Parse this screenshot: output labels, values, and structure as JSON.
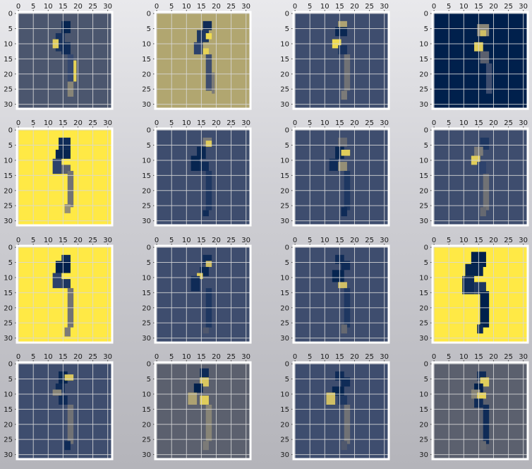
{
  "chart_data": {
    "type": "heatmap",
    "layout": {
      "rows": 4,
      "cols": 4
    },
    "image_shape": [
      32,
      32
    ],
    "axis_ticks": [
      "0",
      "5",
      "10",
      "15",
      "20",
      "25",
      "30"
    ],
    "xlim": [
      -0.5,
      31.5
    ],
    "ylim": [
      31.5,
      -0.5
    ],
    "x_axis_position": "top",
    "grid": true,
    "colormap": "cividis",
    "colormap_stops": [
      "#00204c",
      "#32466f",
      "#575d6d",
      "#7c7b78",
      "#a59c74",
      "#cbba69",
      "#ffe945"
    ],
    "panels": [
      {
        "background": 0.28,
        "marks": [
          {
            "r": 3,
            "c": 15,
            "rh": 4,
            "cw": 3,
            "v": 0.02
          },
          {
            "r": 7,
            "c": 13,
            "rh": 6,
            "cw": 3,
            "v": 0.08
          },
          {
            "r": 9,
            "c": 12,
            "rh": 3,
            "cw": 2,
            "v": 0.9
          },
          {
            "r": 10,
            "c": 15,
            "rh": 4,
            "cw": 3,
            "v": 0.05
          },
          {
            "r": 14,
            "c": 17,
            "rh": 10,
            "cw": 2,
            "v": 0.18
          },
          {
            "r": 16,
            "c": 19,
            "rh": 7,
            "cw": 1,
            "v": 0.92
          },
          {
            "r": 23,
            "c": 17,
            "rh": 5,
            "cw": 2,
            "v": 0.55
          }
        ]
      },
      {
        "background": 0.72,
        "marks": [
          {
            "r": 3,
            "c": 16,
            "rh": 3,
            "cw": 3,
            "v": 0.05
          },
          {
            "r": 6,
            "c": 14,
            "rh": 4,
            "cw": 4,
            "v": 0.1
          },
          {
            "r": 7,
            "c": 17,
            "rh": 2,
            "cw": 2,
            "v": 0.95
          },
          {
            "r": 10,
            "c": 13,
            "rh": 4,
            "cw": 3,
            "v": 0.15
          },
          {
            "r": 12,
            "c": 16,
            "rh": 2,
            "cw": 2,
            "v": 0.92
          },
          {
            "r": 14,
            "c": 17,
            "rh": 12,
            "cw": 2,
            "v": 0.22
          },
          {
            "r": 20,
            "c": 19,
            "rh": 7,
            "cw": 1,
            "v": 0.5
          }
        ]
      },
      {
        "background": 0.22,
        "marks": [
          {
            "r": 3,
            "c": 15,
            "rh": 2,
            "cw": 3,
            "v": 0.7
          },
          {
            "r": 5,
            "c": 14,
            "rh": 3,
            "cw": 4,
            "v": 0.03
          },
          {
            "r": 9,
            "c": 13,
            "rh": 3,
            "cw": 3,
            "v": 0.95
          },
          {
            "r": 11,
            "c": 15,
            "rh": 3,
            "cw": 3,
            "v": 0.08
          },
          {
            "r": 14,
            "c": 17,
            "rh": 12,
            "cw": 2,
            "v": 0.45
          },
          {
            "r": 26,
            "c": 16,
            "rh": 3,
            "cw": 2,
            "v": 0.5
          }
        ]
      },
      {
        "background": 0.0,
        "marks": [
          {
            "r": 4,
            "c": 15,
            "rh": 4,
            "cw": 4,
            "v": 0.55
          },
          {
            "r": 6,
            "c": 16,
            "rh": 2,
            "cw": 2,
            "v": 0.85
          },
          {
            "r": 10,
            "c": 14,
            "rh": 3,
            "cw": 3,
            "v": 0.9
          },
          {
            "r": 13,
            "c": 16,
            "rh": 4,
            "cw": 3,
            "v": 0.35
          },
          {
            "r": 17,
            "c": 18,
            "rh": 10,
            "cw": 2,
            "v": 0.22
          }
        ]
      },
      {
        "background": 1.0,
        "marks": [
          {
            "r": 3,
            "c": 14,
            "rh": 4,
            "cw": 4,
            "v": 0.05
          },
          {
            "r": 7,
            "c": 13,
            "rh": 3,
            "cw": 5,
            "v": 0.02
          },
          {
            "r": 10,
            "c": 12,
            "rh": 5,
            "cw": 3,
            "v": 0.15
          },
          {
            "r": 12,
            "c": 15,
            "rh": 3,
            "cw": 3,
            "v": 0.35
          },
          {
            "r": 14,
            "c": 17,
            "rh": 12,
            "cw": 2,
            "v": 0.45
          },
          {
            "r": 25,
            "c": 16,
            "rh": 3,
            "cw": 2,
            "v": 0.6
          }
        ]
      },
      {
        "background": 0.22,
        "marks": [
          {
            "r": 3,
            "c": 16,
            "rh": 3,
            "cw": 3,
            "v": 0.5
          },
          {
            "r": 4,
            "c": 17,
            "rh": 2,
            "cw": 2,
            "v": 0.9
          },
          {
            "r": 6,
            "c": 14,
            "rh": 4,
            "cw": 3,
            "v": 0.03
          },
          {
            "r": 9,
            "c": 12,
            "rh": 5,
            "cw": 3,
            "v": 0.02
          },
          {
            "r": 11,
            "c": 15,
            "rh": 3,
            "cw": 3,
            "v": 0.05
          },
          {
            "r": 14,
            "c": 17,
            "rh": 13,
            "cw": 2,
            "v": 0.1
          },
          {
            "r": 27,
            "c": 16,
            "rh": 2,
            "cw": 2,
            "v": 0.05
          }
        ]
      },
      {
        "background": 0.22,
        "marks": [
          {
            "r": 3,
            "c": 15,
            "rh": 3,
            "cw": 3,
            "v": 0.4
          },
          {
            "r": 6,
            "c": 14,
            "rh": 4,
            "cw": 3,
            "v": 0.03
          },
          {
            "r": 7,
            "c": 16,
            "rh": 2,
            "cw": 3,
            "v": 0.9
          },
          {
            "r": 10,
            "c": 12,
            "rh": 4,
            "cw": 3,
            "v": 0.05
          },
          {
            "r": 11,
            "c": 15,
            "rh": 3,
            "cw": 3,
            "v": 0.6
          },
          {
            "r": 14,
            "c": 17,
            "rh": 13,
            "cw": 2,
            "v": 0.1
          },
          {
            "r": 26,
            "c": 16,
            "rh": 3,
            "cw": 2,
            "v": 0.05
          }
        ]
      },
      {
        "background": 0.22,
        "marks": [
          {
            "r": 3,
            "c": 16,
            "rh": 4,
            "cw": 3,
            "v": 0.1
          },
          {
            "r": 6,
            "c": 14,
            "rh": 3,
            "cw": 3,
            "v": 0.5
          },
          {
            "r": 9,
            "c": 13,
            "rh": 3,
            "cw": 3,
            "v": 0.9
          },
          {
            "r": 11,
            "c": 15,
            "rh": 4,
            "cw": 3,
            "v": 0.15
          },
          {
            "r": 15,
            "c": 17,
            "rh": 12,
            "cw": 2,
            "v": 0.45
          },
          {
            "r": 26,
            "c": 16,
            "rh": 3,
            "cw": 2,
            "v": 0.4
          }
        ]
      },
      {
        "background": 1.0,
        "marks": [
          {
            "r": 3,
            "c": 15,
            "rh": 3,
            "cw": 3,
            "v": 0.05
          },
          {
            "r": 5,
            "c": 13,
            "rh": 4,
            "cw": 5,
            "v": 0.0
          },
          {
            "r": 9,
            "c": 12,
            "rh": 5,
            "cw": 3,
            "v": 0.15
          },
          {
            "r": 11,
            "c": 15,
            "rh": 3,
            "cw": 3,
            "v": 0.1
          },
          {
            "r": 14,
            "c": 17,
            "rh": 13,
            "cw": 2,
            "v": 0.45
          },
          {
            "r": 27,
            "c": 16,
            "rh": 3,
            "cw": 2,
            "v": 0.5
          }
        ]
      },
      {
        "background": 0.22,
        "marks": [
          {
            "r": 3,
            "c": 16,
            "rh": 3,
            "cw": 3,
            "v": 0.05
          },
          {
            "r": 5,
            "c": 17,
            "rh": 2,
            "cw": 2,
            "v": 0.85
          },
          {
            "r": 7,
            "c": 15,
            "rh": 3,
            "cw": 3,
            "v": 0.03
          },
          {
            "r": 9,
            "c": 14,
            "rh": 2,
            "cw": 2,
            "v": 0.9
          },
          {
            "r": 10,
            "c": 12,
            "rh": 5,
            "cw": 3,
            "v": 0.05
          },
          {
            "r": 14,
            "c": 17,
            "rh": 13,
            "cw": 2,
            "v": 0.1
          },
          {
            "r": 27,
            "c": 16,
            "rh": 2,
            "cw": 2,
            "v": 0.3
          }
        ]
      },
      {
        "background": 0.22,
        "marks": [
          {
            "r": 3,
            "c": 14,
            "rh": 3,
            "cw": 3,
            "v": 0.05
          },
          {
            "r": 5,
            "c": 16,
            "rh": 3,
            "cw": 3,
            "v": 0.05
          },
          {
            "r": 8,
            "c": 13,
            "rh": 4,
            "cw": 4,
            "v": 0.02
          },
          {
            "r": 12,
            "c": 15,
            "rh": 2,
            "cw": 3,
            "v": 0.85
          },
          {
            "r": 14,
            "c": 17,
            "rh": 13,
            "cw": 2,
            "v": 0.1
          },
          {
            "r": 26,
            "c": 16,
            "rh": 3,
            "cw": 2,
            "v": 0.4
          }
        ]
      },
      {
        "background": 1.0,
        "marks": [
          {
            "r": 2,
            "c": 13,
            "rh": 5,
            "cw": 5,
            "v": 0.0
          },
          {
            "r": 6,
            "c": 11,
            "rh": 4,
            "cw": 6,
            "v": 0.02
          },
          {
            "r": 10,
            "c": 10,
            "rh": 6,
            "cw": 4,
            "v": 0.05
          },
          {
            "r": 12,
            "c": 14,
            "rh": 4,
            "cw": 4,
            "v": 0.1
          },
          {
            "r": 15,
            "c": 16,
            "rh": 12,
            "cw": 3,
            "v": 0.0
          },
          {
            "r": 26,
            "c": 15,
            "rh": 3,
            "cw": 2,
            "v": 0.05
          }
        ]
      },
      {
        "background": 0.22,
        "marks": [
          {
            "r": 3,
            "c": 14,
            "rh": 4,
            "cw": 3,
            "v": 0.02
          },
          {
            "r": 4,
            "c": 16,
            "rh": 2,
            "cw": 3,
            "v": 0.88
          },
          {
            "r": 7,
            "c": 13,
            "rh": 3,
            "cw": 3,
            "v": 0.05
          },
          {
            "r": 9,
            "c": 12,
            "rh": 2,
            "cw": 3,
            "v": 0.55
          },
          {
            "r": 11,
            "c": 14,
            "rh": 3,
            "cw": 3,
            "v": 0.05
          },
          {
            "r": 14,
            "c": 17,
            "rh": 13,
            "cw": 2,
            "v": 0.45
          },
          {
            "r": 26,
            "c": 16,
            "rh": 3,
            "cw": 2,
            "v": 0.05
          }
        ]
      },
      {
        "background": 0.35,
        "marks": [
          {
            "r": 2,
            "c": 15,
            "rh": 3,
            "cw": 3,
            "v": 0.05
          },
          {
            "r": 5,
            "c": 15,
            "rh": 3,
            "cw": 3,
            "v": 0.88
          },
          {
            "r": 7,
            "c": 13,
            "rh": 3,
            "cw": 3,
            "v": 0.0
          },
          {
            "r": 10,
            "c": 11,
            "rh": 4,
            "cw": 3,
            "v": 0.7
          },
          {
            "r": 11,
            "c": 15,
            "rh": 3,
            "cw": 3,
            "v": 0.9
          },
          {
            "r": 14,
            "c": 17,
            "rh": 12,
            "cw": 2,
            "v": 0.55
          },
          {
            "r": 26,
            "c": 16,
            "rh": 3,
            "cw": 2,
            "v": 0.5
          }
        ]
      },
      {
        "background": 0.22,
        "marks": [
          {
            "r": 3,
            "c": 14,
            "rh": 3,
            "cw": 3,
            "v": 0.05
          },
          {
            "r": 5,
            "c": 16,
            "rh": 3,
            "cw": 3,
            "v": 0.05
          },
          {
            "r": 8,
            "c": 13,
            "rh": 3,
            "cw": 4,
            "v": 0.02
          },
          {
            "r": 10,
            "c": 11,
            "rh": 4,
            "cw": 3,
            "v": 0.85
          },
          {
            "r": 11,
            "c": 15,
            "rh": 3,
            "cw": 3,
            "v": 0.1
          },
          {
            "r": 14,
            "c": 17,
            "rh": 13,
            "cw": 2,
            "v": 0.45
          },
          {
            "r": 26,
            "c": 16,
            "rh": 3,
            "cw": 2,
            "v": 0.3
          }
        ]
      },
      {
        "background": 0.35,
        "marks": [
          {
            "r": 3,
            "c": 15,
            "rh": 3,
            "cw": 3,
            "v": 0.05
          },
          {
            "r": 5,
            "c": 16,
            "rh": 3,
            "cw": 3,
            "v": 0.9
          },
          {
            "r": 7,
            "c": 14,
            "rh": 3,
            "cw": 3,
            "v": 0.0
          },
          {
            "r": 9,
            "c": 13,
            "rh": 3,
            "cw": 3,
            "v": 0.55
          },
          {
            "r": 10,
            "c": 15,
            "rh": 2,
            "cw": 3,
            "v": 0.92
          },
          {
            "r": 12,
            "c": 14,
            "rh": 3,
            "cw": 3,
            "v": 0.05
          },
          {
            "r": 14,
            "c": 17,
            "rh": 13,
            "cw": 2,
            "v": 0.05
          },
          {
            "r": 26,
            "c": 16,
            "rh": 3,
            "cw": 2,
            "v": 0.4
          }
        ]
      }
    ]
  }
}
